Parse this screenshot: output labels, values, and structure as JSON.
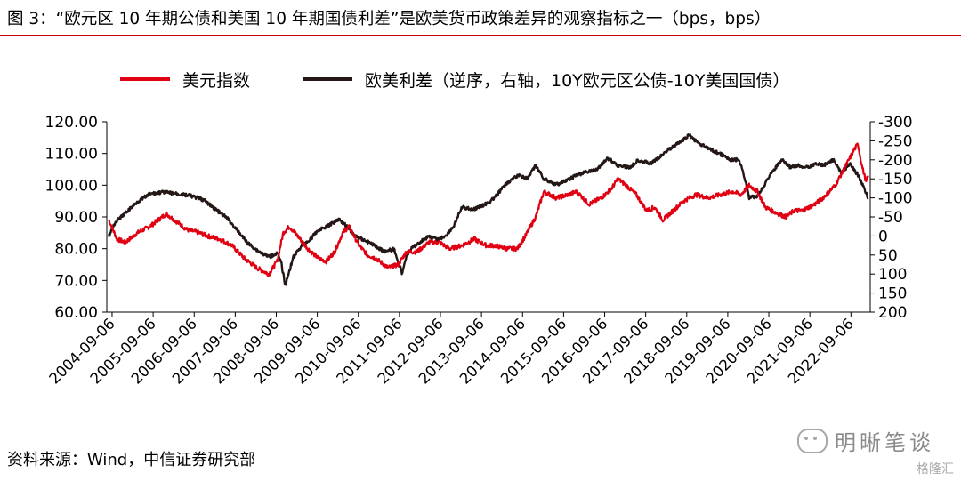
{
  "figure": {
    "title": "图 3：“欧元区 10 年期公债和美国 10 年期国债利差”是欧美货币政策差异的观察指标之一（bps，bps）",
    "source": "资料来源：Wind，中信证券研究部",
    "watermark": "明晰笔谈",
    "brand": "格隆汇"
  },
  "chart_data": {
    "type": "line",
    "legend": [
      {
        "name": "美元指数",
        "color": "#e00012"
      },
      {
        "name": "欧美利差（逆序，右轴，10Y欧元区公债-10Y美国国债）",
        "color": "#231815"
      }
    ],
    "x_tick_labels": [
      "2004-09-06",
      "2005-09-06",
      "2006-09-06",
      "2007-09-06",
      "2008-09-06",
      "2009-09-06",
      "2010-09-06",
      "2011-09-06",
      "2012-09-06",
      "2013-09-06",
      "2014-09-06",
      "2015-09-06",
      "2016-09-06",
      "2017-09-06",
      "2018-09-06",
      "2019-09-06",
      "2020-09-06",
      "2021-09-06",
      "2022-09-06"
    ],
    "x_range": [
      2004.55,
      2023.15
    ],
    "y_left": {
      "min": 60,
      "max": 120,
      "ticks": [
        "60.00",
        "70.00",
        "80.00",
        "90.00",
        "100.00",
        "110.00",
        "120.00"
      ]
    },
    "y_right": {
      "min": -300,
      "max": 200,
      "reversed": true,
      "ticks": [
        "-300",
        "-250",
        "-200",
        "-150",
        "-100",
        "-50",
        "0",
        "50",
        "100",
        "150",
        "200"
      ]
    },
    "series": [
      {
        "name": "美元指数",
        "color": "#e00012",
        "axis": "left",
        "points": [
          [
            2004.6,
            89
          ],
          [
            2004.8,
            83
          ],
          [
            2005.0,
            82
          ],
          [
            2005.3,
            85
          ],
          [
            2005.6,
            87
          ],
          [
            2005.9,
            90
          ],
          [
            2006.0,
            91
          ],
          [
            2006.2,
            89
          ],
          [
            2006.5,
            86
          ],
          [
            2006.8,
            85
          ],
          [
            2007.0,
            84
          ],
          [
            2007.3,
            83
          ],
          [
            2007.6,
            81
          ],
          [
            2007.9,
            77
          ],
          [
            2008.2,
            74
          ],
          [
            2008.5,
            72
          ],
          [
            2008.7,
            76
          ],
          [
            2008.85,
            85
          ],
          [
            2009.0,
            87
          ],
          [
            2009.2,
            84
          ],
          [
            2009.45,
            80
          ],
          [
            2009.7,
            77
          ],
          [
            2009.9,
            76
          ],
          [
            2010.1,
            79
          ],
          [
            2010.3,
            85
          ],
          [
            2010.45,
            87
          ],
          [
            2010.7,
            81
          ],
          [
            2010.9,
            78
          ],
          [
            2011.1,
            77
          ],
          [
            2011.4,
            74
          ],
          [
            2011.65,
            75
          ],
          [
            2011.85,
            79
          ],
          [
            2012.1,
            79
          ],
          [
            2012.4,
            82
          ],
          [
            2012.65,
            82
          ],
          [
            2012.9,
            80
          ],
          [
            2013.2,
            81
          ],
          [
            2013.5,
            83
          ],
          [
            2013.8,
            81
          ],
          [
            2014.0,
            81
          ],
          [
            2014.3,
            80
          ],
          [
            2014.55,
            80
          ],
          [
            2014.75,
            84
          ],
          [
            2015.0,
            90
          ],
          [
            2015.2,
            98
          ],
          [
            2015.5,
            96
          ],
          [
            2015.8,
            97
          ],
          [
            2016.0,
            98
          ],
          [
            2016.3,
            94
          ],
          [
            2016.6,
            96
          ],
          [
            2016.85,
            99
          ],
          [
            2017.0,
            102
          ],
          [
            2017.2,
            100
          ],
          [
            2017.45,
            97
          ],
          [
            2017.7,
            92
          ],
          [
            2017.9,
            93
          ],
          [
            2018.1,
            89
          ],
          [
            2018.35,
            92
          ],
          [
            2018.6,
            95
          ],
          [
            2018.9,
            97
          ],
          [
            2019.2,
            96
          ],
          [
            2019.5,
            97
          ],
          [
            2019.8,
            98
          ],
          [
            2020.0,
            97
          ],
          [
            2020.2,
            100
          ],
          [
            2020.4,
            98
          ],
          [
            2020.6,
            93
          ],
          [
            2020.9,
            91
          ],
          [
            2021.1,
            90
          ],
          [
            2021.3,
            92
          ],
          [
            2021.5,
            92
          ],
          [
            2021.8,
            94
          ],
          [
            2022.0,
            96
          ],
          [
            2022.3,
            100
          ],
          [
            2022.55,
            106
          ],
          [
            2022.75,
            111
          ],
          [
            2022.85,
            113
          ],
          [
            2022.95,
            106
          ],
          [
            2023.05,
            101
          ],
          [
            2023.1,
            103
          ]
        ]
      },
      {
        "name": "欧美利差（逆序，右轴，10Y欧元区公债-10Y美国国债）",
        "color": "#231815",
        "axis": "right",
        "points": [
          [
            2004.6,
            0
          ],
          [
            2004.75,
            -35
          ],
          [
            2005.0,
            -60
          ],
          [
            2005.3,
            -90
          ],
          [
            2005.6,
            -110
          ],
          [
            2005.9,
            -115
          ],
          [
            2006.2,
            -112
          ],
          [
            2006.6,
            -105
          ],
          [
            2006.9,
            -95
          ],
          [
            2007.2,
            -70
          ],
          [
            2007.5,
            -45
          ],
          [
            2007.8,
            -5
          ],
          [
            2008.0,
            20
          ],
          [
            2008.25,
            40
          ],
          [
            2008.5,
            55
          ],
          [
            2008.7,
            45
          ],
          [
            2008.8,
            70
          ],
          [
            2008.9,
            130
          ],
          [
            2009.0,
            90
          ],
          [
            2009.1,
            55
          ],
          [
            2009.3,
            25
          ],
          [
            2009.5,
            10
          ],
          [
            2009.7,
            -15
          ],
          [
            2010.0,
            -30
          ],
          [
            2010.2,
            -45
          ],
          [
            2010.4,
            -25
          ],
          [
            2010.6,
            0
          ],
          [
            2010.8,
            10
          ],
          [
            2011.0,
            20
          ],
          [
            2011.3,
            40
          ],
          [
            2011.55,
            35
          ],
          [
            2011.75,
            100
          ],
          [
            2011.85,
            50
          ],
          [
            2012.0,
            30
          ],
          [
            2012.2,
            15
          ],
          [
            2012.4,
            0
          ],
          [
            2012.6,
            10
          ],
          [
            2012.8,
            0
          ],
          [
            2013.0,
            -25
          ],
          [
            2013.2,
            -75
          ],
          [
            2013.5,
            -70
          ],
          [
            2013.8,
            -85
          ],
          [
            2014.0,
            -100
          ],
          [
            2014.3,
            -140
          ],
          [
            2014.6,
            -160
          ],
          [
            2014.8,
            -150
          ],
          [
            2015.0,
            -185
          ],
          [
            2015.2,
            -150
          ],
          [
            2015.5,
            -135
          ],
          [
            2015.75,
            -145
          ],
          [
            2016.0,
            -160
          ],
          [
            2016.3,
            -170
          ],
          [
            2016.5,
            -175
          ],
          [
            2016.75,
            -205
          ],
          [
            2017.0,
            -185
          ],
          [
            2017.3,
            -180
          ],
          [
            2017.5,
            -200
          ],
          [
            2017.8,
            -190
          ],
          [
            2018.0,
            -205
          ],
          [
            2018.2,
            -225
          ],
          [
            2018.5,
            -245
          ],
          [
            2018.75,
            -265
          ],
          [
            2018.95,
            -245
          ],
          [
            2019.2,
            -230
          ],
          [
            2019.5,
            -215
          ],
          [
            2019.75,
            -200
          ],
          [
            2019.95,
            -200
          ],
          [
            2020.1,
            -150
          ],
          [
            2020.2,
            -100
          ],
          [
            2020.4,
            -105
          ],
          [
            2020.55,
            -130
          ],
          [
            2020.7,
            -160
          ],
          [
            2020.85,
            -180
          ],
          [
            2021.0,
            -200
          ],
          [
            2021.2,
            -180
          ],
          [
            2021.4,
            -185
          ],
          [
            2021.6,
            -180
          ],
          [
            2021.85,
            -190
          ],
          [
            2022.0,
            -185
          ],
          [
            2022.25,
            -200
          ],
          [
            2022.45,
            -165
          ],
          [
            2022.65,
            -190
          ],
          [
            2022.85,
            -160
          ],
          [
            2023.0,
            -125
          ],
          [
            2023.1,
            -100
          ]
        ]
      }
    ]
  }
}
